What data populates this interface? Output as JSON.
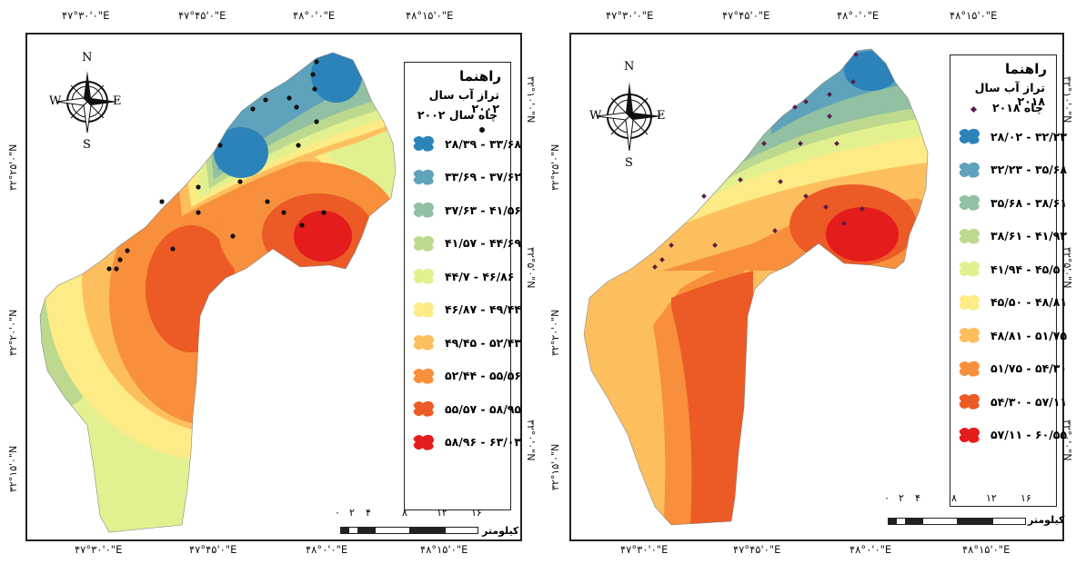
{
  "left_map": {
    "top_coords": [
      "۴۷°۳۰'۰\"E",
      "۴۷°۴۵'۰\"E",
      "۴۸°۰'۰\"E",
      "۴۸°۱۵'۰\"E"
    ],
    "bottom_coords": [
      "۴۷°۳۰'۰\"E",
      "۴۷°۴۵'۰\"E",
      "۴۸°۰'۰\"E",
      "۴۸°۱۵'۰\"E"
    ],
    "left_coords": [
      "۳۲°۱۵'۰\"N",
      "۳۲°۲۰'۰\"N",
      "۳۲°۲۵'۰\"N"
    ],
    "right_coords": [
      "۳۲°۱۰'۰\"N",
      "۳۲°۵'۰\"N",
      "۳۲°۰'۰\"N"
    ],
    "legend": {
      "title": "راهنما",
      "subtitle": "تراز آب سال ۲۰۰۲",
      "wells": "چاه سال ۲۰۰۲",
      "classes": [
        {
          "label": "۲۸/۳۹ - ۳۳/۶۸",
          "color": "#2b83ba"
        },
        {
          "label": "۳۳/۶۹ - ۳۷/۶۲",
          "color": "#5fa2bb"
        },
        {
          "label": "۳۷/۶۳ - ۴۱/۵۶",
          "color": "#91c0a2"
        },
        {
          "label": "۴۱/۵۷ - ۴۴/۶۹",
          "color": "#bcd98f"
        },
        {
          "label": "۴۴/۷ - ۴۶/۸۶",
          "color": "#e3f08f"
        },
        {
          "label": "۴۶/۸۷ - ۴۹/۴۴",
          "color": "#fdeb85"
        },
        {
          "label": "۴۹/۴۵ - ۵۲/۴۳",
          "color": "#fdbf5e"
        },
        {
          "label": "۵۲/۴۴ - ۵۵/۵۶",
          "color": "#f88f3c"
        },
        {
          "label": "۵۵/۵۷ - ۵۸/۹۵",
          "color": "#ec5a25"
        },
        {
          "label": "۵۸/۹۶ - ۶۳/۰۳",
          "color": "#e41c1c"
        }
      ]
    },
    "scale": {
      "ticks": [
        "۰",
        "۲",
        "۴",
        "۸",
        "۱۲",
        "۱۶"
      ],
      "unit": "کیلومتر"
    },
    "compass": {
      "n": "N",
      "s": "S",
      "e": "E",
      "w": "W"
    }
  },
  "right_map": {
    "top_coords": [
      "۴۷°۳۰'۰\"E",
      "۴۷°۴۵'۰\"E",
      "۴۸°۰'۰\"E",
      "۴۸°۱۵'۰\"E"
    ],
    "bottom_coords": [
      "۴۷°۳۰'۰\"E",
      "۴۷°۴۵'۰\"E",
      "۴۸°۰'۰\"E",
      "۴۸°۱۵'۰\"E"
    ],
    "left_coords": [
      "۳۲°۱۵'۰\"N",
      "۳۲°۲۰'۰\"N",
      "۳۲°۲۵'۰\"N"
    ],
    "right_coords": [
      "۳۲°۱۰'۰\"N",
      "۳۲°۵'۰\"N",
      "۳۲°۰'۰\"N"
    ],
    "legend": {
      "title": "راهنما",
      "subtitle": "تراز آب سال ۲۰۱۸",
      "wells": "چاه ۲۰۱۸",
      "classes": [
        {
          "label": "۲۸/۰۲ - ۳۲/۲۳",
          "color": "#2b83ba"
        },
        {
          "label": "۳۲/۲۳ - ۳۵/۶۸",
          "color": "#5fa2bb"
        },
        {
          "label": "۳۵/۶۸ - ۳۸/۶۱",
          "color": "#91c0a2"
        },
        {
          "label": "۳۸/۶۱ - ۴۱/۹۳",
          "color": "#bcd98f"
        },
        {
          "label": "۴۱/۹۴ - ۴۵/۵۰",
          "color": "#e3f08f"
        },
        {
          "label": "۴۵/۵۰ - ۴۸/۸۱",
          "color": "#fdeb85"
        },
        {
          "label": "۴۸/۸۱ - ۵۱/۷۵",
          "color": "#fdbf5e"
        },
        {
          "label": "۵۱/۷۵ - ۵۴/۳۰",
          "color": "#f88f3c"
        },
        {
          "label": "۵۴/۳۰ - ۵۷/۱۱",
          "color": "#ec5a25"
        },
        {
          "label": "۵۷/۱۱ - ۶۰/۵۵",
          "color": "#e41c1c"
        }
      ]
    },
    "scale": {
      "ticks": [
        "۰",
        "۲",
        "۴",
        "۸",
        "۱۲",
        "۱۶"
      ],
      "unit": "کیلومتر"
    },
    "compass": {
      "n": "N",
      "s": "S",
      "e": "E",
      "w": "W"
    }
  }
}
